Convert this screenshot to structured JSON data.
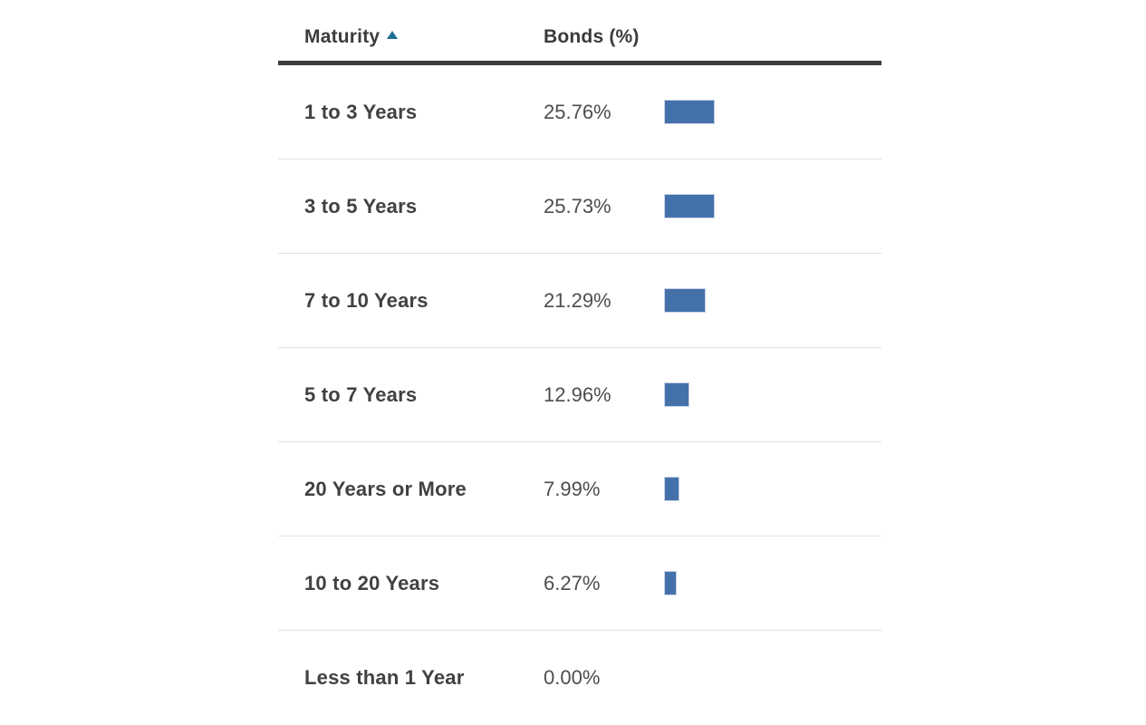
{
  "table": {
    "columns": [
      {
        "label": "Maturity",
        "sort": "ascending"
      },
      {
        "label": "Bonds (%)"
      }
    ],
    "rows": [
      {
        "maturity": "1 to 3 Years",
        "bonds": "25.76%",
        "value": 25.76
      },
      {
        "maturity": "3 to 5 Years",
        "bonds": "25.73%",
        "value": 25.73
      },
      {
        "maturity": "7 to 10 Years",
        "bonds": "21.29%",
        "value": 21.29
      },
      {
        "maturity": "5 to 7 Years",
        "bonds": "12.96%",
        "value": 12.96
      },
      {
        "maturity": "20 Years or More",
        "bonds": "7.99%",
        "value": 7.99
      },
      {
        "maturity": "10 to 20 Years",
        "bonds": "6.27%",
        "value": 6.27
      },
      {
        "maturity": "Less than 1 Year",
        "bonds": "0.00%",
        "value": 0.0
      }
    ]
  },
  "chart_data": {
    "type": "bar",
    "orientation": "horizontal",
    "categories": [
      "1 to 3 Years",
      "3 to 5 Years",
      "7 to 10 Years",
      "5 to 7 Years",
      "20 Years or More",
      "10 to 20 Years",
      "Less than 1 Year"
    ],
    "values": [
      25.76,
      25.73,
      21.29,
      12.96,
      7.99,
      6.27,
      0.0
    ],
    "value_labels": [
      "25.76%",
      "25.73%",
      "21.29%",
      "12.96%",
      "7.99%",
      "6.27%",
      "0.00%"
    ],
    "title": "",
    "xlabel": "Bonds (%)",
    "ylabel": "Maturity",
    "xlim": [
      0,
      100
    ],
    "grid": false,
    "legend": false,
    "sort_column": "Maturity",
    "sort_direction": "ascending"
  },
  "colors": {
    "bar_fill": "#4471aa",
    "bar_border": "#c9d3e8",
    "sort_arrow": "#1e6e93",
    "header_rule": "#3d3d3d",
    "row_divider": "#e2e2e2",
    "header_text": "#3b3b3b",
    "label_text": "#414141",
    "value_text": "#4d4d4d"
  }
}
